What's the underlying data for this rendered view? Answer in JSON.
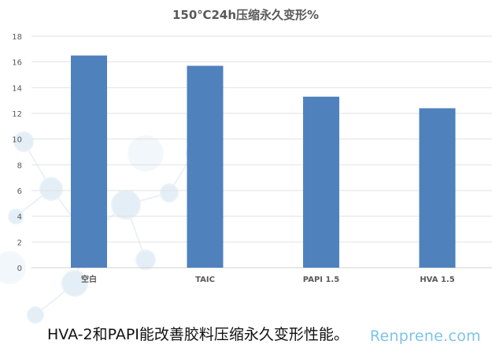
{
  "chart_data": {
    "type": "bar",
    "title": "150℃24h压缩永久变形%",
    "categories": [
      "空白",
      "TAIC",
      "PAPI 1.5",
      "HVA 1.5"
    ],
    "values": [
      16.5,
      15.7,
      13.3,
      12.4
    ],
    "xlabel": "",
    "ylabel": "",
    "ylim": [
      0,
      18
    ],
    "yticks": [
      "0",
      "2",
      "4",
      "6",
      "8",
      "10",
      "12",
      "14",
      "16",
      "18"
    ],
    "grid": true,
    "bar_color": "#4f81bd"
  },
  "caption": "HVA-2和PAPI能改善胶料压缩永久变形性能。",
  "watermark": "Renprene.com"
}
